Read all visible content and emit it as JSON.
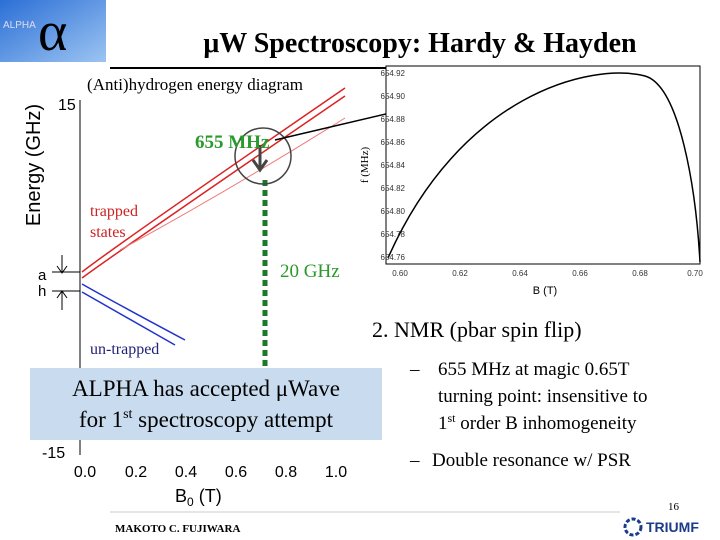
{
  "logo": {
    "small": "ALPHA",
    "symbol": "α"
  },
  "title": "μW Spectroscopy: Hardy & Hayden",
  "diagram": {
    "caption": "(Anti)hydrogen energy diagram",
    "y_label": "Energy (GHz)",
    "y_ticks": [
      "15",
      "-15"
    ],
    "x_ticks": [
      "0.0",
      "0.2",
      "0.4",
      "0.6",
      "0.8",
      "1.0"
    ],
    "x_label": {
      "base": "B",
      "sub": "0",
      "unit": " (T)"
    },
    "labels": {
      "freq": "655 MHz",
      "trapped": [
        "trapped",
        "states"
      ],
      "gap": "20 GHz",
      "a": "a",
      "h": "h",
      "untrapped": "un-trapped"
    }
  },
  "inset": {
    "y_label": "f (MHz)",
    "y_ticks": [
      "654.92",
      "654.90",
      "654.88",
      "654.86",
      "654.84",
      "654.82",
      "654.80",
      "654.78",
      "654.76"
    ],
    "x_ticks": [
      "0.60",
      "0.62",
      "0.64",
      "0.66",
      "0.68",
      "0.70"
    ],
    "x_label": "B (T)"
  },
  "callout": {
    "line1": "ALPHA has accepted μWave",
    "line2": {
      "before": "for 1",
      "sup": "st",
      "after": " spectroscopy attempt"
    }
  },
  "heading": "2. NMR (pbar spin flip)",
  "bullets": [
    {
      "line1": "655 MHz at magic 0.65T",
      "line2": "turning point: insensitive to",
      "line3": {
        "before": "1",
        "sup": "st",
        "after": " order B inhomogeneity"
      }
    },
    {
      "line1": "Double resonance w/ PSR"
    }
  ],
  "page_number": "16",
  "author": "MAKOTO C. FUJIWARA",
  "institution": "TRIUMF"
}
